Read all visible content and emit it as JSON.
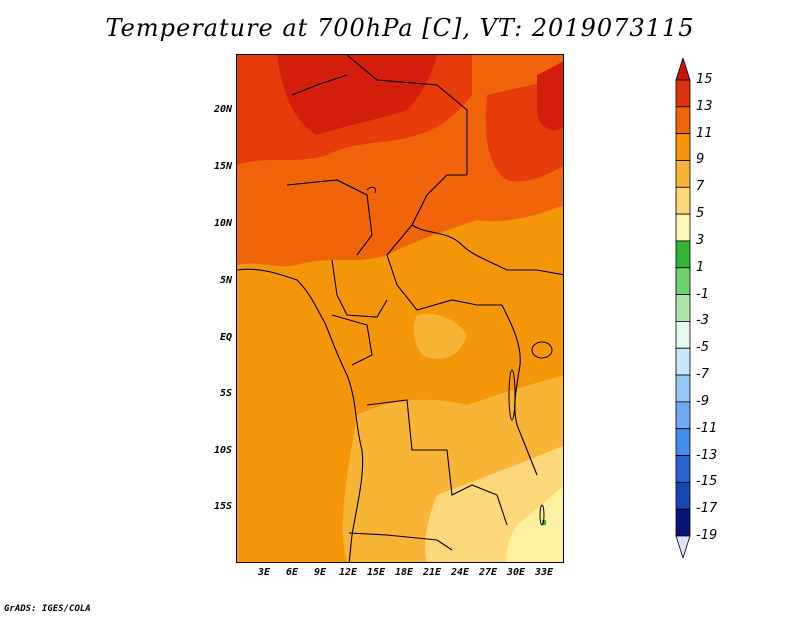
{
  "title": "Temperature at 700hPa [C], VT: 2019073115",
  "credit": "GrADS: IGES/COLA",
  "latitude_labels": [
    "20N",
    "15N",
    "10N",
    "5N",
    "EQ",
    "5S",
    "10S",
    "15S"
  ],
  "longitude_labels": [
    "3E",
    "6E",
    "9E",
    "12E",
    "15E",
    "18E",
    "21E",
    "24E",
    "27E",
    "30E",
    "33E"
  ],
  "colorbar": {
    "labels": [
      "15",
      "13",
      "11",
      "9",
      "7",
      "5",
      "3",
      "1",
      "-1",
      "-3",
      "-5",
      "-7",
      "-9",
      "-11",
      "-13",
      "-15",
      "-17",
      "-19"
    ],
    "colors": [
      "#c8140a",
      "#e03210",
      "#f0640a",
      "#f5960a",
      "#f8b437",
      "#fcd87a",
      "#fff5b4",
      "#34b434",
      "#6ed26e",
      "#aae6aa",
      "#e6f8f0",
      "#c8e6fa",
      "#96c8f5",
      "#6eaaf0",
      "#468cea",
      "#2864d2",
      "#1446b4",
      "#0a1478",
      "#e1e1f5"
    ]
  },
  "map_regions": {
    "colors": {
      "dark_red": "#d21e0a",
      "red_orange": "#e63c0a",
      "orange_red": "#f0640a",
      "orange": "#f5960a",
      "light_orange": "#f8b437",
      "pale_yellow": "#fcd87a",
      "cream": "#fff0a0",
      "green": "#34b434"
    }
  }
}
